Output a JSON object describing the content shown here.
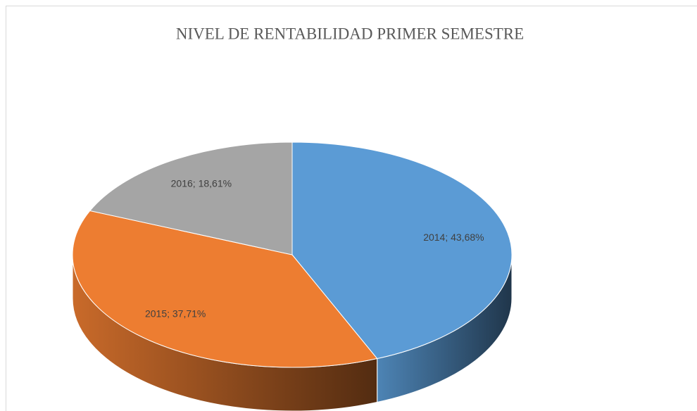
{
  "chart_data": {
    "type": "pie3d",
    "title": "NIVEL DE RENTABILIDAD PRIMER SEMESTRE",
    "categories": [
      "2014",
      "2015",
      "2016"
    ],
    "values": [
      43.68,
      37.71,
      18.61
    ],
    "value_labels": [
      "2014; 43,68%",
      "2015; 37,71%",
      "2016; 18,61%"
    ],
    "colors": [
      "#5b9bd5",
      "#ed7d31",
      "#a5a5a5"
    ]
  }
}
